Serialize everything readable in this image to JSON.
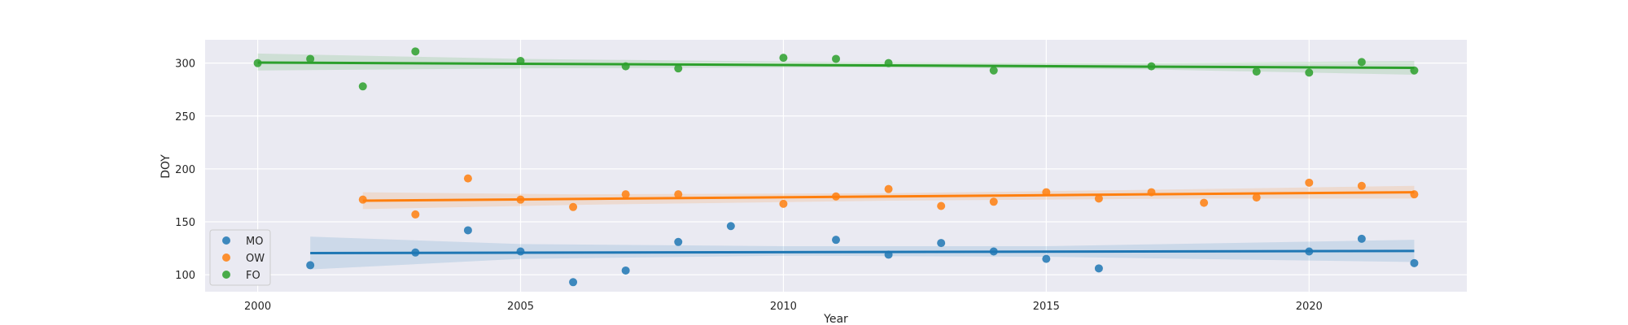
{
  "chart_data": {
    "type": "scatter",
    "xlabel": "Year",
    "ylabel": "DOY",
    "xlim": [
      1999,
      2023
    ],
    "ylim": [
      84,
      322
    ],
    "xticks": [
      2000,
      2005,
      2010,
      2015,
      2020
    ],
    "yticks": [
      100,
      150,
      200,
      250,
      300
    ],
    "grid": true,
    "legend_position": "lower-left",
    "series": [
      {
        "name": "MO",
        "color": "#1f77b4",
        "points": [
          [
            2001,
            109
          ],
          [
            2003,
            121
          ],
          [
            2004,
            142
          ],
          [
            2005,
            122
          ],
          [
            2006,
            93
          ],
          [
            2007,
            104
          ],
          [
            2008,
            131
          ],
          [
            2009,
            146
          ],
          [
            2011,
            133
          ],
          [
            2012,
            119
          ],
          [
            2013,
            130
          ],
          [
            2014,
            122
          ],
          [
            2015,
            115
          ],
          [
            2016,
            106
          ],
          [
            2020,
            122
          ],
          [
            2021,
            134
          ],
          [
            2022,
            111
          ]
        ],
        "trend": [
          [
            2001,
            120.5
          ],
          [
            2022,
            122.5
          ]
        ],
        "band_lower": [
          [
            2001,
            105
          ],
          [
            2005,
            115
          ],
          [
            2010,
            118
          ],
          [
            2015,
            117
          ],
          [
            2022,
            112
          ]
        ],
        "band_upper": [
          [
            2001,
            136
          ],
          [
            2005,
            129
          ],
          [
            2010,
            127
          ],
          [
            2015,
            127
          ],
          [
            2022,
            133
          ]
        ]
      },
      {
        "name": "OW",
        "color": "#ff7f0e",
        "points": [
          [
            2002,
            171
          ],
          [
            2003,
            157
          ],
          [
            2004,
            191
          ],
          [
            2005,
            171
          ],
          [
            2006,
            164
          ],
          [
            2007,
            176
          ],
          [
            2008,
            176
          ],
          [
            2010,
            167
          ],
          [
            2011,
            174
          ],
          [
            2012,
            181
          ],
          [
            2013,
            165
          ],
          [
            2014,
            169
          ],
          [
            2015,
            178
          ],
          [
            2016,
            172
          ],
          [
            2017,
            178
          ],
          [
            2018,
            168
          ],
          [
            2019,
            173
          ],
          [
            2020,
            187
          ],
          [
            2021,
            184
          ],
          [
            2022,
            176
          ]
        ],
        "trend": [
          [
            2002,
            170
          ],
          [
            2022,
            178
          ]
        ],
        "band_lower": [
          [
            2002,
            162
          ],
          [
            2006,
            166
          ],
          [
            2012,
            170
          ],
          [
            2018,
            172
          ],
          [
            2022,
            172
          ]
        ],
        "band_upper": [
          [
            2002,
            178
          ],
          [
            2006,
            176
          ],
          [
            2012,
            177
          ],
          [
            2018,
            181
          ],
          [
            2022,
            184
          ]
        ]
      },
      {
        "name": "FO",
        "color": "#2ca02c",
        "points": [
          [
            2000,
            300
          ],
          [
            2001,
            304
          ],
          [
            2002,
            278
          ],
          [
            2003,
            311
          ],
          [
            2005,
            302
          ],
          [
            2007,
            297
          ],
          [
            2008,
            295
          ],
          [
            2010,
            305
          ],
          [
            2011,
            304
          ],
          [
            2012,
            300
          ],
          [
            2014,
            293
          ],
          [
            2017,
            297
          ],
          [
            2019,
            292
          ],
          [
            2020,
            291
          ],
          [
            2021,
            301
          ],
          [
            2022,
            293
          ]
        ],
        "trend": [
          [
            2000,
            300.5
          ],
          [
            2022,
            295.5
          ]
        ],
        "band_lower": [
          [
            2000,
            293
          ],
          [
            2005,
            295
          ],
          [
            2011,
            296
          ],
          [
            2017,
            294
          ],
          [
            2022,
            289
          ]
        ],
        "band_upper": [
          [
            2000,
            309
          ],
          [
            2005,
            304
          ],
          [
            2011,
            301
          ],
          [
            2017,
            300
          ],
          [
            2022,
            302
          ]
        ]
      }
    ]
  }
}
